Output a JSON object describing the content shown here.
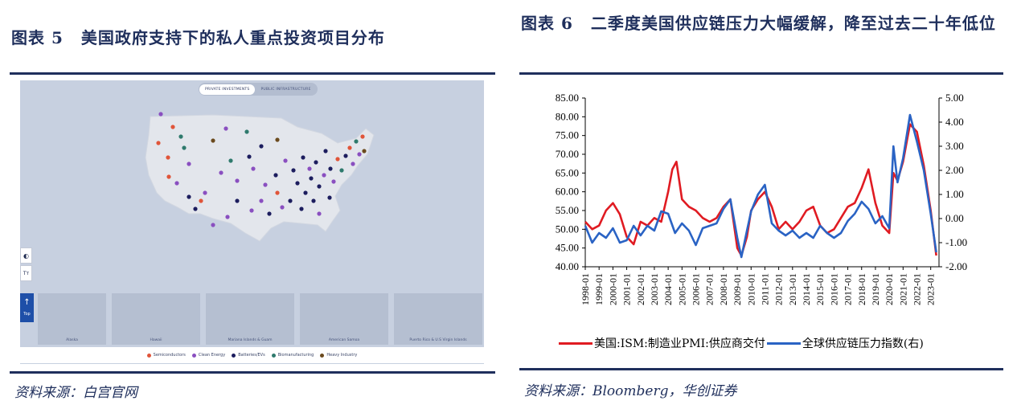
{
  "figure5": {
    "title_num": "图表 5",
    "title_text": "美国政府支持下的私人重点投资项目分布",
    "source": "资料来源：白宫官网",
    "toggle": {
      "active": "PRIVATE INVESTMENTS",
      "inactive": "PUBLIC INFRASTRUCTURE"
    },
    "controls": {
      "contrast_icon": "◐",
      "text_icon": "Tт",
      "home_label": "Top"
    },
    "insets": [
      "Alaska",
      "Hawaii",
      "Mariana Islands & Guam",
      "American Samoa",
      "Puerto Rico & U.S Virgin Islands"
    ],
    "legend": [
      {
        "label": "Semiconductors",
        "color": "#e0553a",
        "icon": "hexagon-icon"
      },
      {
        "label": "Clean Energy",
        "color": "#8a4fc0",
        "icon": "hexagon-icon"
      },
      {
        "label": "Batteries/EVs",
        "color": "#1c1d5e",
        "icon": "hexagon-icon"
      },
      {
        "label": "Biomanufacturing",
        "color": "#2f7a6d",
        "icon": "hexagon-icon"
      },
      {
        "label": "Heavy Industry",
        "color": "#6b4a1e",
        "icon": "hexagon-icon"
      }
    ]
  },
  "figure6": {
    "title_num": "图表 6",
    "title_text": "二季度美国供应链压力大幅缓解，降至过去二十年低位",
    "source": "资料来源：Bloomberg，华创证券",
    "legend_left": "美国:ISM:制造业PMI:供应商交付",
    "legend_right": "全球供应链压力指数(右)"
  },
  "chart_data": {
    "type": "line",
    "x_labels": [
      "1998-01",
      "1999-01",
      "2000-01",
      "2001-01",
      "2002-01",
      "2003-01",
      "2004-01",
      "2005-01",
      "2006-01",
      "2007-01",
      "2008-01",
      "2009-01",
      "2010-01",
      "2011-01",
      "2012-01",
      "2013-01",
      "2014-01",
      "2015-01",
      "2016-01",
      "2017-01",
      "2018-01",
      "2019-01",
      "2020-01",
      "2021-01",
      "2022-01",
      "2023-01"
    ],
    "y_left": {
      "ticks": [
        "85.00",
        "80.00",
        "75.00",
        "70.00",
        "65.00",
        "60.00",
        "55.00",
        "50.00",
        "45.00",
        "40.00"
      ],
      "min": 40,
      "max": 85
    },
    "y_right": {
      "ticks": [
        "5.00",
        "4.00",
        "3.00",
        "2.00",
        "1.00",
        "0.00",
        "-1.00",
        "-2.00"
      ],
      "min": -2,
      "max": 5
    },
    "series": [
      {
        "name": "美国:ISM:制造业PMI:供应商交付",
        "axis": "left",
        "color": "#e01b22",
        "x": [
          1998.0,
          1998.5,
          1999.0,
          1999.5,
          2000.0,
          2000.5,
          2001.0,
          2001.5,
          2002.0,
          2002.5,
          2003.0,
          2003.5,
          2004.0,
          2004.3,
          2004.6,
          2005.0,
          2005.5,
          2006.0,
          2006.5,
          2007.0,
          2007.5,
          2008.0,
          2008.5,
          2009.0,
          2009.3,
          2009.7,
          2010.0,
          2010.5,
          2011.0,
          2011.5,
          2012.0,
          2012.5,
          2013.0,
          2013.5,
          2014.0,
          2014.5,
          2015.0,
          2015.5,
          2016.0,
          2016.5,
          2017.0,
          2017.5,
          2018.0,
          2018.5,
          2019.0,
          2019.5,
          2020.0,
          2020.3,
          2020.6,
          2021.0,
          2021.5,
          2022.0,
          2022.5,
          2023.0,
          2023.4
        ],
        "y": [
          52,
          50,
          51,
          55,
          57,
          54,
          48,
          46,
          52,
          51,
          53,
          52,
          60,
          66,
          68,
          58,
          56,
          55,
          53,
          52,
          53,
          56,
          58,
          45,
          43,
          48,
          55,
          58,
          60,
          56,
          50,
          52,
          50,
          52,
          55,
          56,
          51,
          49,
          50,
          53,
          56,
          57,
          61,
          66,
          57,
          51,
          49,
          65,
          63,
          68,
          78,
          76,
          67,
          55,
          43
        ]
      },
      {
        "name": "全球供应链压力指数(右)",
        "axis": "right",
        "color": "#2a63c4",
        "x": [
          1998.0,
          1998.5,
          1999.0,
          1999.5,
          2000.0,
          2000.5,
          2001.0,
          2001.5,
          2002.0,
          2002.5,
          2003.0,
          2003.5,
          2004.0,
          2004.5,
          2005.0,
          2005.5,
          2006.0,
          2006.5,
          2007.0,
          2007.5,
          2008.0,
          2008.5,
          2009.0,
          2009.3,
          2009.7,
          2010.0,
          2010.5,
          2011.0,
          2011.5,
          2012.0,
          2012.5,
          2013.0,
          2013.5,
          2014.0,
          2014.5,
          2015.0,
          2015.5,
          2016.0,
          2016.5,
          2017.0,
          2017.5,
          2018.0,
          2018.5,
          2019.0,
          2019.5,
          2020.0,
          2020.3,
          2020.6,
          2021.0,
          2021.5,
          2022.0,
          2022.5,
          2023.0,
          2023.4
        ],
        "y": [
          -0.3,
          -1.0,
          -0.6,
          -0.8,
          -0.4,
          -1.0,
          -0.9,
          -0.3,
          -0.7,
          -0.3,
          -0.5,
          0.3,
          0.2,
          -0.6,
          -0.2,
          -0.5,
          -1.1,
          -0.4,
          -0.3,
          -0.2,
          0.4,
          0.8,
          -0.8,
          -1.6,
          -0.5,
          0.3,
          1.0,
          1.4,
          -0.2,
          -0.5,
          -0.7,
          -0.5,
          -0.8,
          -0.6,
          -0.8,
          -0.3,
          -0.6,
          -0.8,
          -0.6,
          -0.1,
          0.2,
          0.7,
          0.4,
          -0.2,
          0.1,
          -0.4,
          3.0,
          1.5,
          2.5,
          4.3,
          3.2,
          2.0,
          0.2,
          -1.4
        ]
      }
    ]
  }
}
